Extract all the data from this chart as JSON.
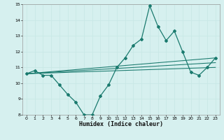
{
  "title": "",
  "xlabel": "Humidex (Indice chaleur)",
  "ylabel": "",
  "bg_color": "#d6f0ef",
  "grid_color": "#c8e8e6",
  "line_color": "#1a7a6e",
  "xlim": [
    -0.5,
    23.5
  ],
  "ylim": [
    8,
    15
  ],
  "xticks": [
    0,
    1,
    2,
    3,
    4,
    5,
    6,
    7,
    8,
    9,
    10,
    11,
    12,
    13,
    14,
    15,
    16,
    17,
    18,
    19,
    20,
    21,
    22,
    23
  ],
  "yticks": [
    8,
    9,
    10,
    11,
    12,
    13,
    14,
    15
  ],
  "main_series": {
    "x": [
      0,
      1,
      2,
      3,
      4,
      5,
      6,
      7,
      8,
      9,
      10,
      11,
      12,
      13,
      14,
      15,
      16,
      17,
      18,
      19,
      20,
      21,
      22,
      23
    ],
    "y": [
      10.6,
      10.8,
      10.5,
      10.5,
      9.9,
      9.3,
      8.8,
      8.0,
      8.0,
      9.2,
      9.9,
      11.0,
      11.6,
      12.4,
      12.8,
      14.9,
      13.6,
      12.7,
      13.3,
      12.0,
      10.7,
      10.5,
      11.0,
      11.6
    ]
  },
  "trend_lines": [
    {
      "x": [
        0,
        23
      ],
      "y": [
        10.6,
        11.6
      ]
    },
    {
      "x": [
        0,
        23
      ],
      "y": [
        10.6,
        11.3
      ]
    },
    {
      "x": [
        0,
        23
      ],
      "y": [
        10.6,
        11.0
      ]
    }
  ],
  "xlabel_fontsize": 6,
  "tick_fontsize": 4.5,
  "linewidth": 0.9,
  "marker_size": 2.0
}
